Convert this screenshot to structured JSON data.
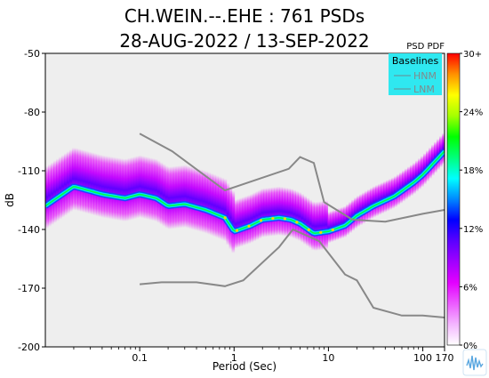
{
  "title": "CH.WEIN.--.EHE : 761 PSDs",
  "subtitle": "28-AUG-2022 / 13-SEP-2022",
  "colorbar": {
    "title": "PSD PDF",
    "ticks": [
      "0%",
      "6%",
      "12%",
      "18%",
      "24%",
      "30+"
    ]
  },
  "legend": {
    "title": "Baselines",
    "items": [
      "HNM",
      "LNM"
    ],
    "background": "#2fe8f0"
  },
  "logo_icon": "waveform-logo-icon",
  "chart_data": {
    "type": "heatmap",
    "title": "CH.WEIN.--.EHE : 761 PSDs",
    "subtitle": "28-AUG-2022 / 13-SEP-2022",
    "xlabel": "Period (Sec)",
    "ylabel": "dB",
    "xscale": "log",
    "xlim": [
      0.01,
      170
    ],
    "ylim": [
      -200,
      -50
    ],
    "xticks": [
      0.1,
      1,
      10,
      100,
      170
    ],
    "xtick_labels": [
      "0.1",
      "1",
      "10",
      "100",
      "170"
    ],
    "yticks": [
      -200,
      -170,
      -140,
      -110,
      -80,
      -50
    ],
    "ytick_labels": [
      "-200",
      "-170",
      "-140",
      "-110",
      "-80",
      "-50"
    ],
    "plot_background": "#eeeeee",
    "baselines": [
      {
        "name": "HNM",
        "color": "#888888",
        "x": [
          0.1,
          0.22,
          0.8,
          3.8,
          5,
          7,
          9,
          18,
          40,
          100,
          170
        ],
        "y": [
          -91,
          -100,
          -120,
          -109,
          -103,
          -106,
          -126,
          -135,
          -136,
          -132,
          -130
        ]
      },
      {
        "name": "LNM",
        "color": "#888888",
        "x": [
          0.1,
          0.17,
          0.4,
          0.8,
          1.25,
          3,
          4.2,
          8,
          15,
          20,
          30,
          60,
          100,
          170
        ],
        "y": [
          -168,
          -167,
          -167,
          -169,
          -166,
          -149,
          -140,
          -146,
          -163,
          -166,
          -180,
          -184,
          -184,
          -185
        ]
      }
    ],
    "mode_curve": {
      "x": [
        0.01,
        0.02,
        0.04,
        0.07,
        0.1,
        0.15,
        0.2,
        0.3,
        0.5,
        0.8,
        1,
        1.5,
        2,
        3,
        4,
        5,
        7,
        10,
        15,
        20,
        30,
        50,
        80,
        100,
        170
      ],
      "y": [
        -128,
        -118,
        -122,
        -124,
        -122,
        -124,
        -128,
        -127,
        -130,
        -134,
        -141,
        -138,
        -135,
        -134,
        -135,
        -137,
        -142,
        -141,
        -138,
        -133,
        -128,
        -123,
        -116,
        -112,
        -100
      ]
    },
    "colorbar": {
      "label": "PSD PDF",
      "range": [
        0,
        30
      ],
      "tick_labels": [
        "0%",
        "6%",
        "12%",
        "18%",
        "24%",
        "30+"
      ],
      "colors": [
        "#ffffff",
        "#f4b7ff",
        "#ec5bff",
        "#e300ff",
        "#a000ff",
        "#5a00ff",
        "#0000ff",
        "#0088ff",
        "#00ffff",
        "#00ff7a",
        "#00ff00",
        "#a5ff00",
        "#ffff00",
        "#ff9000",
        "#ff0000"
      ]
    },
    "legend": {
      "title": "Baselines",
      "entries": [
        "HNM",
        "LNM"
      ],
      "position": "top-right"
    }
  }
}
